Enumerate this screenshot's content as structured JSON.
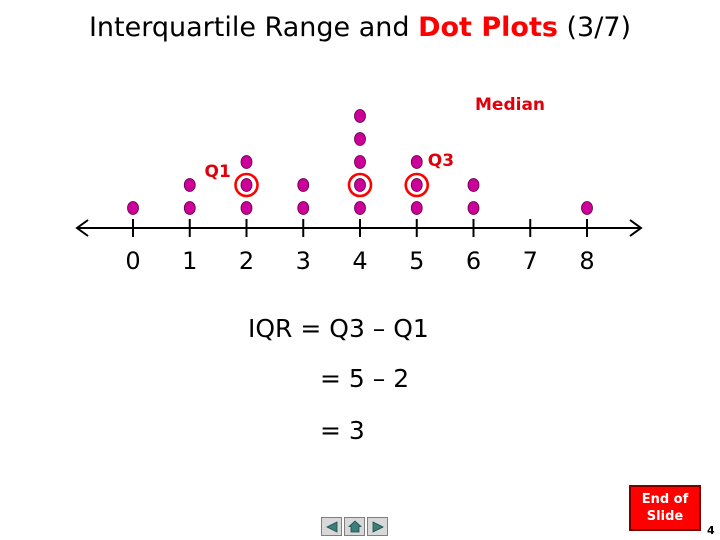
{
  "title": {
    "prefix": "Interquartile Range and ",
    "highlight": "Dot Plots",
    "suffix": " (3/7)"
  },
  "chart_data": {
    "type": "scatter",
    "subtype": "dot-plot",
    "x_ticks": [
      "0",
      "1",
      "2",
      "3",
      "4",
      "5",
      "6",
      "7",
      "8"
    ],
    "xlim": [
      0,
      8
    ],
    "counts": [
      {
        "x": 0,
        "count": 1
      },
      {
        "x": 1,
        "count": 2
      },
      {
        "x": 2,
        "count": 3
      },
      {
        "x": 3,
        "count": 2
      },
      {
        "x": 4,
        "count": 5
      },
      {
        "x": 5,
        "count": 3
      },
      {
        "x": 6,
        "count": 2
      },
      {
        "x": 7,
        "count": 0
      },
      {
        "x": 8,
        "count": 1
      }
    ],
    "dot_color": "#cc0099",
    "circled": [
      {
        "x": 2,
        "level": 2
      },
      {
        "x": 4,
        "level": 2
      },
      {
        "x": 5,
        "level": 2
      }
    ],
    "circle_color": "#ff0000",
    "annotations": {
      "q1": "Q1",
      "q3": "Q3",
      "median": "Median"
    },
    "annotation_color": "#e0000b"
  },
  "equations": {
    "line1": "IQR = Q3 – Q1",
    "line2": "= 5 – 2",
    "line3": "= 3"
  },
  "end_button": {
    "label": "End of\nSlide"
  },
  "slide_number": "4",
  "nav": {
    "back_icon": "triangle-left-icon",
    "home_icon": "home-icon",
    "forward_icon": "triangle-right-icon"
  }
}
